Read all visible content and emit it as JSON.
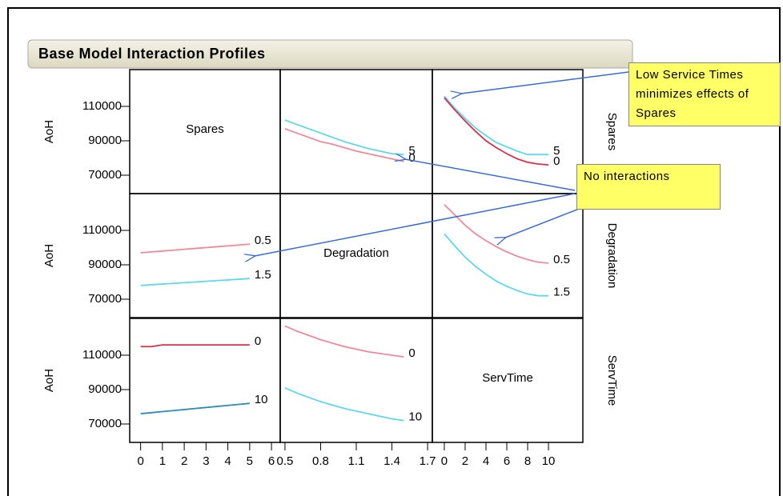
{
  "title": "Base Model Interaction Profiles",
  "y_label": "AoH",
  "factors": [
    "Spares",
    "Degradation",
    "ServTime"
  ],
  "annotations": [
    "Low Service Times minimizes effects of Spares",
    "No interactions"
  ],
  "y_axis": {
    "ylim": [
      59300,
      131400
    ],
    "yticks": [
      70000,
      90000,
      110000
    ]
  },
  "x_axes": [
    {
      "xlim": [
        -0.5,
        6.4
      ],
      "xticks": [
        0,
        1,
        2,
        3,
        4,
        5,
        6
      ]
    },
    {
      "xlim": [
        0.46,
        1.74
      ],
      "xticks": [
        0.5,
        0.8,
        1.1,
        1.4,
        1.7
      ]
    },
    {
      "xlim": [
        -1.15,
        13.3
      ],
      "xticks": [
        0,
        2,
        4,
        6,
        8,
        10
      ]
    }
  ],
  "chart_data": [
    {
      "type": "line",
      "x": [
        0.5,
        0.6,
        0.7,
        0.8,
        0.9,
        1.0,
        1.1,
        1.2,
        1.3,
        1.4,
        1.5
      ],
      "series": [
        {
          "name": "5",
          "color": "#5fd8ec",
          "values": [
            102000,
            99500,
            97000,
            94500,
            92000,
            89500,
            87500,
            85500,
            84000,
            82500,
            82000
          ]
        },
        {
          "name": "0",
          "color": "#f08a9a",
          "values": [
            97000,
            94500,
            92000,
            89500,
            88000,
            86000,
            84000,
            82500,
            81000,
            79500,
            78000
          ]
        }
      ]
    },
    {
      "type": "line",
      "x": [
        0,
        1,
        2,
        3,
        4,
        5,
        6,
        7,
        8,
        9,
        10
      ],
      "series": [
        {
          "name": "5",
          "color": "#5fd8ec",
          "values": [
            116000,
            109000,
            103000,
            97500,
            93000,
            89000,
            86500,
            84000,
            82000,
            82000,
            82000
          ]
        },
        {
          "name": "0",
          "color": "#d8304a",
          "values": [
            115000,
            108000,
            101500,
            95500,
            90000,
            86000,
            82500,
            79500,
            77500,
            76500,
            76000
          ]
        }
      ]
    },
    {
      "type": "line",
      "x": [
        0,
        0.5,
        1,
        1.5,
        2,
        2.5,
        3,
        3.5,
        4,
        4.5,
        5
      ],
      "series": [
        {
          "name": "0.5",
          "color": "#f08a9a",
          "values": [
            97000,
            97500,
            98000,
            98500,
            99000,
            99500,
            100000,
            100500,
            101000,
            101500,
            102000
          ]
        },
        {
          "name": "1.5",
          "color": "#5fd8ec",
          "values": [
            78000,
            78400,
            78800,
            79200,
            79600,
            80000,
            80400,
            80800,
            81200,
            81600,
            82000
          ]
        }
      ]
    },
    {
      "type": "line",
      "x": [
        0,
        1,
        2,
        3,
        4,
        5,
        6,
        7,
        8,
        9,
        10
      ],
      "series": [
        {
          "name": "0.5",
          "color": "#f08a9a",
          "values": [
            125000,
            119000,
            113000,
            108000,
            104000,
            100500,
            97500,
            95000,
            93000,
            91500,
            91000
          ]
        },
        {
          "name": "1.5",
          "color": "#5fd8ec",
          "values": [
            108000,
            101000,
            94500,
            89000,
            84500,
            80500,
            77500,
            75000,
            73000,
            72000,
            72000
          ]
        }
      ]
    },
    {
      "type": "line",
      "x": [
        0,
        0.5,
        1,
        1.5,
        2,
        2.5,
        3,
        3.5,
        4,
        4.5,
        5
      ],
      "series": [
        {
          "name": "0",
          "color": "#d8304a",
          "values": [
            115000,
            115000,
            116000,
            116000,
            116000,
            116000,
            116000,
            116000,
            116000,
            116000,
            116000
          ]
        },
        {
          "name": "10",
          "color": "#2a8ab8",
          "values": [
            76000,
            76600,
            77200,
            77800,
            78400,
            79000,
            79600,
            80200,
            80800,
            81400,
            82000
          ]
        }
      ]
    },
    {
      "type": "line",
      "x": [
        0.5,
        0.6,
        0.7,
        0.8,
        0.9,
        1.0,
        1.1,
        1.2,
        1.3,
        1.4,
        1.5
      ],
      "series": [
        {
          "name": "0",
          "color": "#f08a9a",
          "values": [
            127000,
            124000,
            121500,
            119000,
            117000,
            115000,
            113500,
            112000,
            111000,
            110000,
            109000
          ]
        },
        {
          "name": "10",
          "color": "#5fd8ec",
          "values": [
            91000,
            88000,
            85500,
            83000,
            81000,
            79000,
            77500,
            76000,
            74500,
            73000,
            72000
          ]
        }
      ]
    }
  ]
}
